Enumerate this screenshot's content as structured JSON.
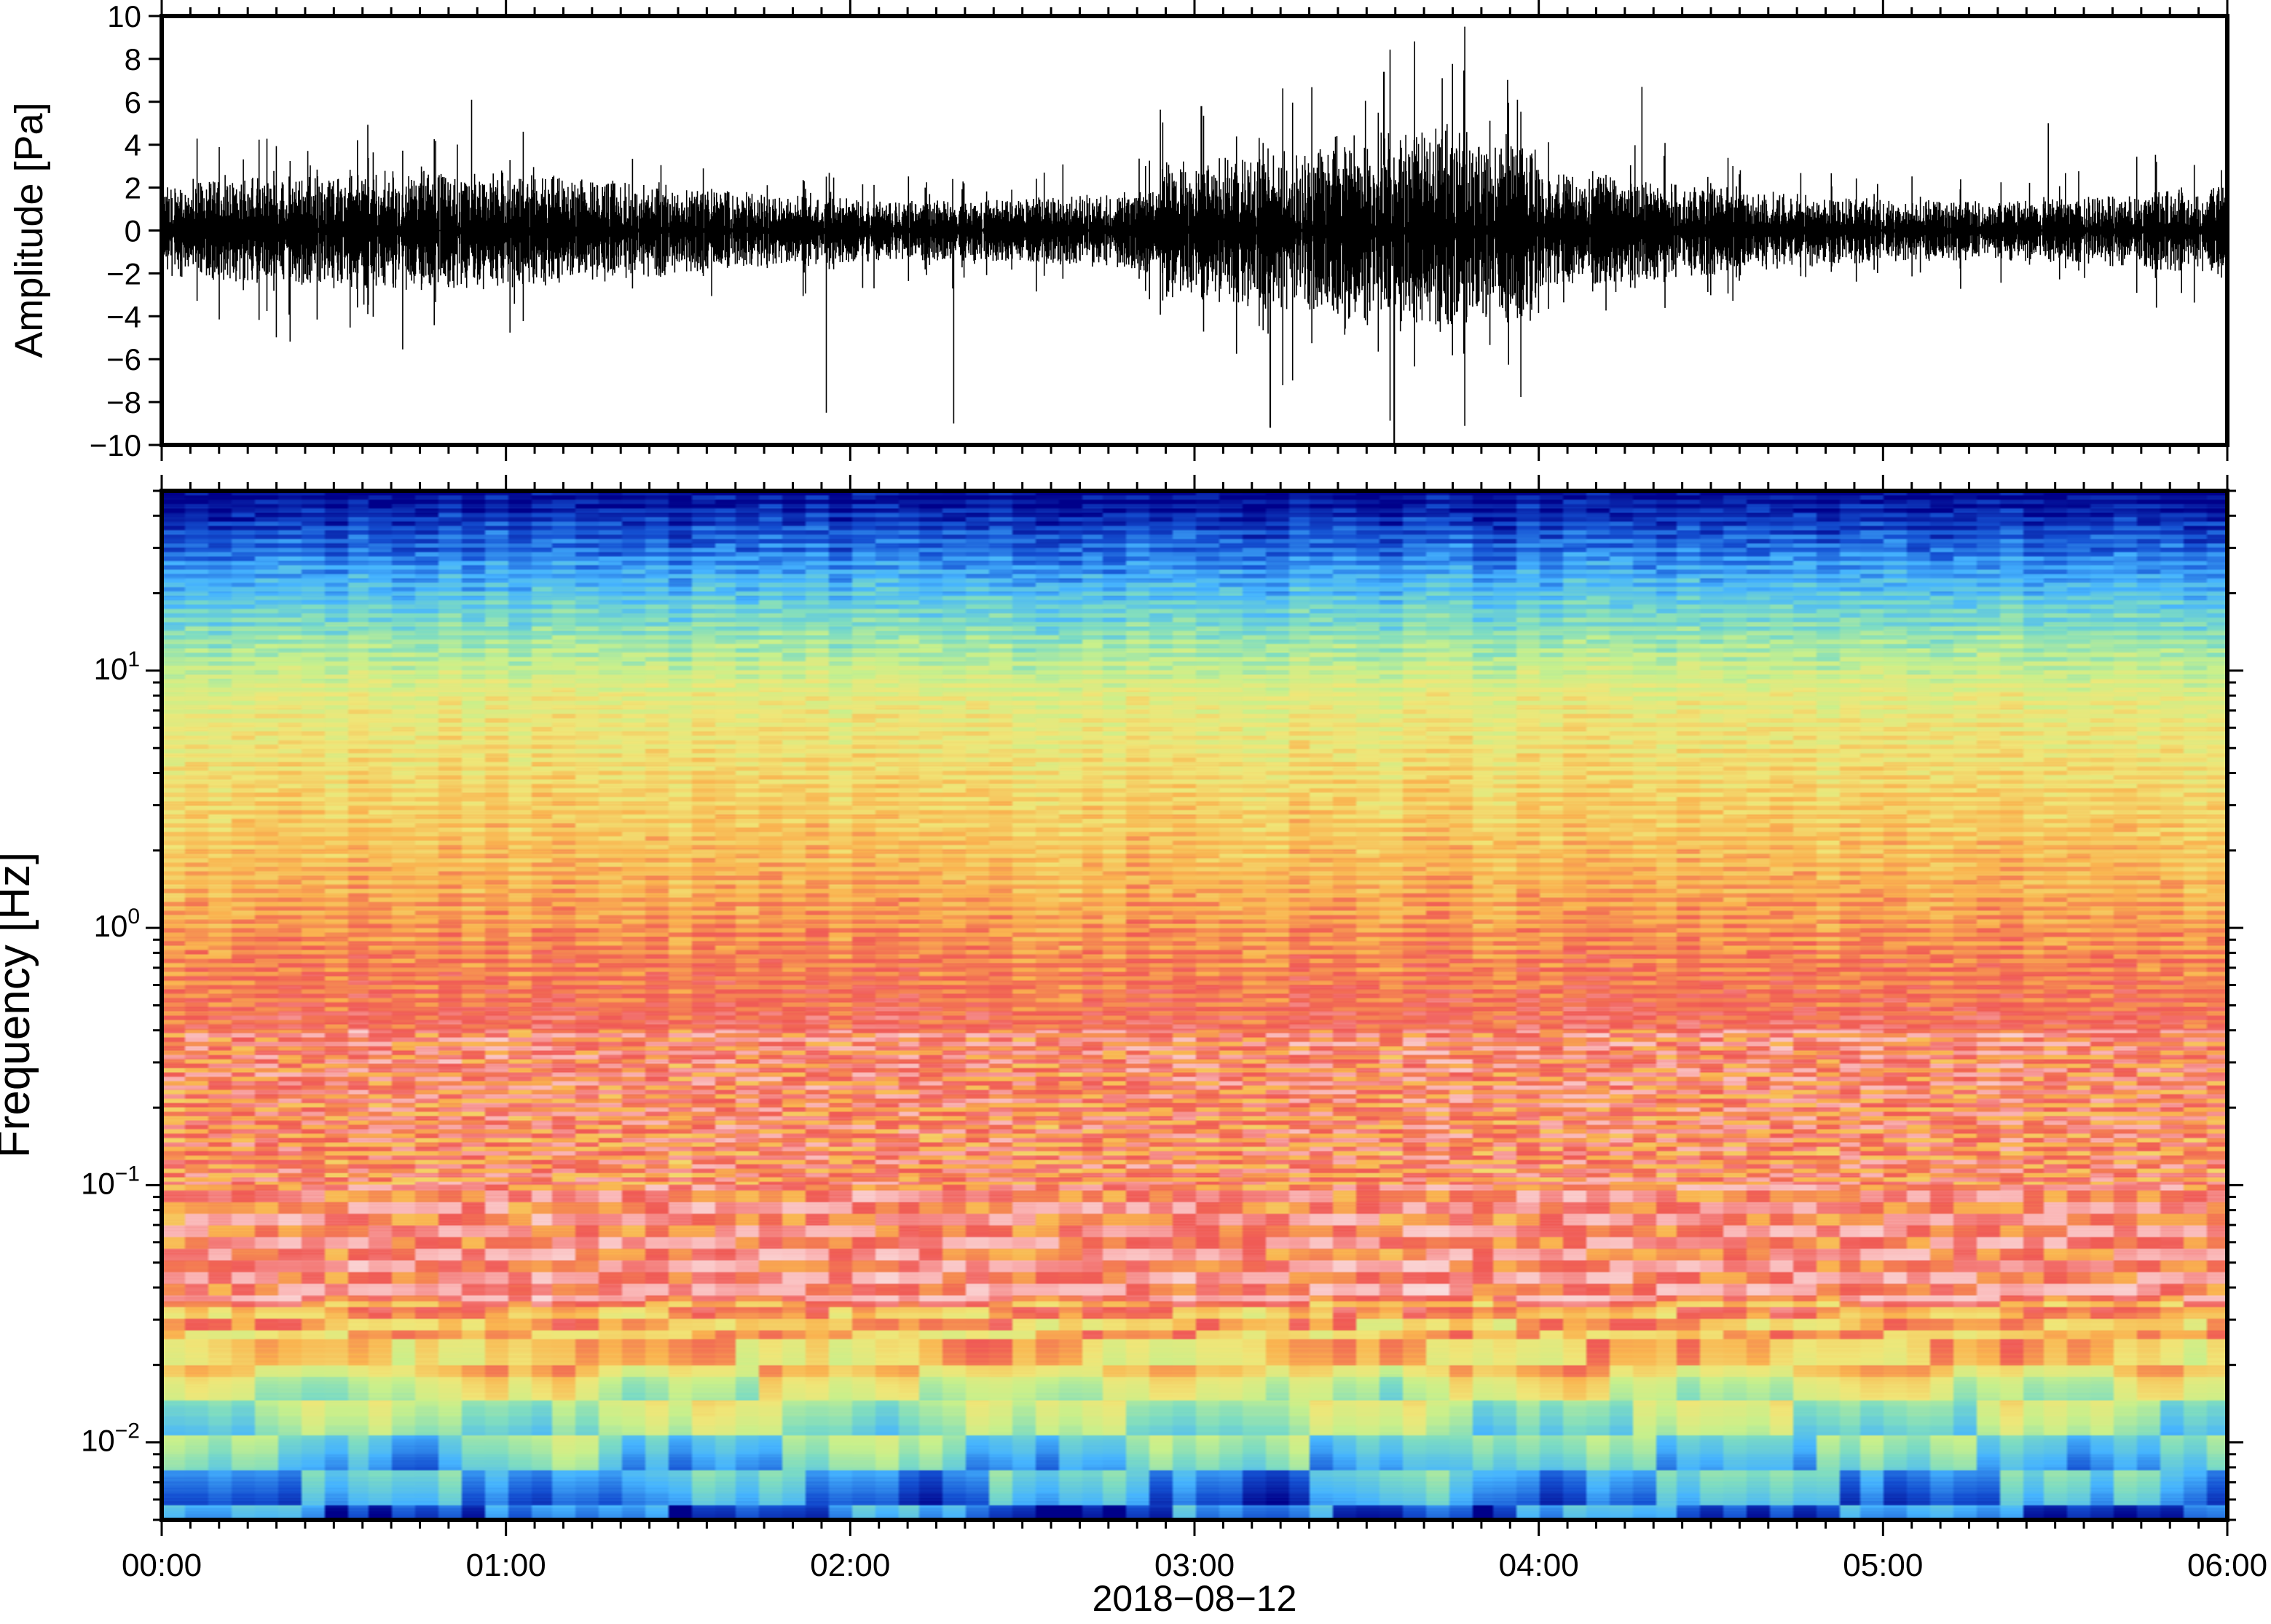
{
  "chart_data": [
    {
      "type": "line",
      "panel": "waveform",
      "ylabel": "Amplitude [Pa]",
      "ylim": [
        -10,
        10
      ],
      "yticks": [
        -10,
        -8,
        -6,
        -4,
        -2,
        0,
        2,
        4,
        6,
        8,
        10
      ],
      "ytick_labels": [
        "−10",
        "−8",
        "−6",
        "−4",
        "−2",
        "0",
        "2",
        "4",
        "6",
        "8",
        "10"
      ],
      "xlim_hours": [
        0,
        6
      ],
      "line_color": "#000000",
      "notable_peaks_hours": [
        0.9,
        1.93,
        2.3,
        3.02,
        3.22,
        3.55,
        3.58,
        3.72,
        4.3,
        5.48
      ],
      "notable_peaks_pa": [
        6.1,
        -8.5,
        -9.0,
        5.8,
        -9.2,
        7.4,
        -10.0,
        7.1,
        6.7,
        5.0
      ]
    },
    {
      "type": "heatmap",
      "panel": "spectrogram",
      "ylabel": "Frequency [Hz]",
      "yscale": "log",
      "ylim": [
        0.005,
        50
      ],
      "yticks": [
        0.01,
        0.1,
        1,
        10
      ],
      "ytick_labels": [
        {
          "base": "10",
          "exp": "−2"
        },
        {
          "base": "10",
          "exp": "−1"
        },
        {
          "base": "10",
          "exp": "0"
        },
        {
          "base": "10",
          "exp": "1"
        }
      ],
      "colormap": [
        "#00008a",
        "#1450d2",
        "#46b4ff",
        "#7ddcc3",
        "#c8f08c",
        "#f0e678",
        "#fab450",
        "#f05a55",
        "#fab4b4",
        "#fae6e6"
      ],
      "xlim_hours": [
        0,
        6
      ]
    }
  ],
  "xaxis": {
    "tick_labels": [
      "00:00",
      "01:00",
      "02:00",
      "03:00",
      "04:00",
      "05:00",
      "06:00"
    ],
    "label": "2018−08−12"
  }
}
